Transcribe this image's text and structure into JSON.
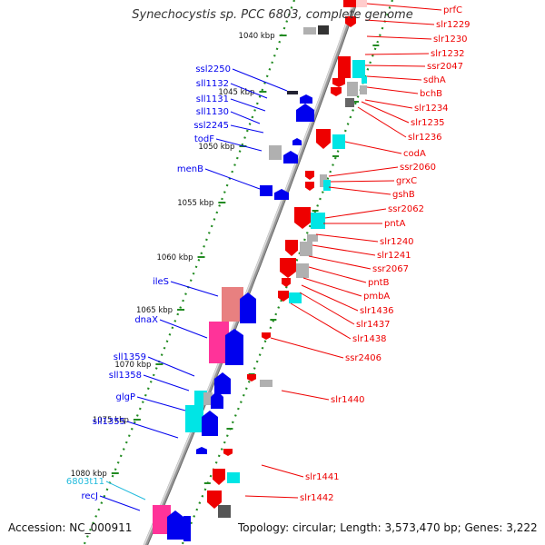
{
  "title": "Synechocystis sp. PCC 6803, complete genome",
  "footer": {
    "accession": "Accession: NC_000911",
    "topology": "Topology: circular; Length: 3,573,470 bp; Genes: 3,222"
  },
  "colors": {
    "forward": "#0000ee",
    "reverse": "#ee0000",
    "rna": "#22bbdd",
    "backbone": "#888888",
    "tick": "#228b22"
  },
  "scale_labels": [
    "1040 kbp",
    "1045 kbp",
    "1050 kbp",
    "1055 kbp",
    "1060 kbp",
    "1065 kbp",
    "1070 kbp",
    "1075 kbp",
    "1080 kbp"
  ],
  "left_labels": [
    {
      "name": "ssl2250",
      "color": "forward"
    },
    {
      "name": "sll1132",
      "color": "forward"
    },
    {
      "name": "sll1131",
      "color": "forward"
    },
    {
      "name": "sll1130",
      "color": "forward"
    },
    {
      "name": "ssl2245",
      "color": "forward"
    },
    {
      "name": "todF",
      "color": "forward"
    },
    {
      "name": "menB",
      "color": "forward"
    },
    {
      "name": "ileS",
      "color": "forward"
    },
    {
      "name": "dnaX",
      "color": "forward"
    },
    {
      "name": "sll1359",
      "color": "forward"
    },
    {
      "name": "sll1358",
      "color": "forward"
    },
    {
      "name": "glgP",
      "color": "forward"
    },
    {
      "name": "sll1355",
      "color": "forward"
    },
    {
      "name": "6803t11",
      "color": "rna"
    },
    {
      "name": "recJ",
      "color": "forward"
    }
  ],
  "right_labels": [
    "prfC",
    "slr1229",
    "slr1230",
    "slr1232",
    "ssr2047",
    "sdhA",
    "bchB",
    "slr1234",
    "slr1235",
    "slr1236",
    "codA",
    "ssr2060",
    "grxC",
    "gshB",
    "ssr2062",
    "pntA",
    "slr1240",
    "slr1241",
    "ssr2067",
    "pntB",
    "pmbA",
    "slr1436",
    "slr1437",
    "slr1438",
    "ssr2406",
    "slr1440",
    "slr1441",
    "slr1442"
  ]
}
